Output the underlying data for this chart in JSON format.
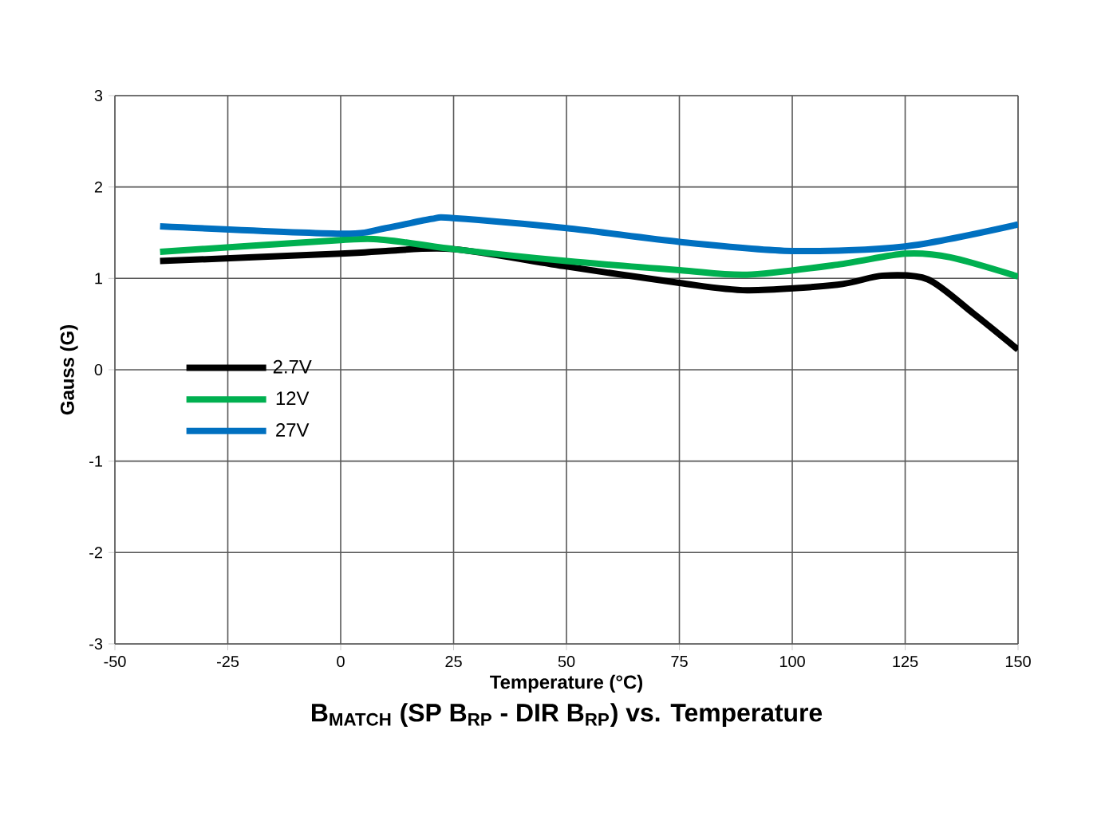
{
  "chart_data": {
    "type": "line",
    "title": "B$_{MATCH}$ (SP B$_{RP}$ - DIR B$_{RP}$) vs. Temperature",
    "xlabel": "Temperature (°C)",
    "ylabel": "Gauss (G)",
    "xlim": [
      -50,
      150
    ],
    "xticks": [
      -50,
      -25,
      0,
      25,
      50,
      75,
      100,
      125,
      150
    ],
    "ylim": [
      -3,
      3
    ],
    "yticks": [
      -3,
      -2,
      -1,
      0,
      1,
      2,
      3
    ],
    "grid": true,
    "legend": "left",
    "marker": "none",
    "line_style": "solid",
    "series": [
      {
        "name": "2.7V",
        "color": "#000000",
        "x": [
          -40,
          0,
          10,
          25,
          50,
          75,
          90,
          110,
          120,
          130,
          140,
          150
        ],
        "values": [
          1.19,
          1.27,
          1.3,
          1.32,
          1.13,
          0.95,
          0.87,
          0.93,
          1.03,
          0.99,
          0.62,
          0.22
        ]
      },
      {
        "name": "12V",
        "color": "#00b050",
        "x": [
          -40,
          0,
          10,
          25,
          50,
          75,
          90,
          110,
          125,
          135,
          150
        ],
        "values": [
          1.29,
          1.42,
          1.42,
          1.32,
          1.19,
          1.09,
          1.04,
          1.15,
          1.27,
          1.23,
          1.02
        ]
      },
      {
        "name": "27V",
        "color": "#0070c0",
        "x": [
          -40,
          0,
          10,
          20,
          25,
          50,
          75,
          100,
          125,
          150
        ],
        "values": [
          1.57,
          1.49,
          1.55,
          1.65,
          1.66,
          1.55,
          1.4,
          1.3,
          1.35,
          1.59
        ]
      }
    ]
  }
}
